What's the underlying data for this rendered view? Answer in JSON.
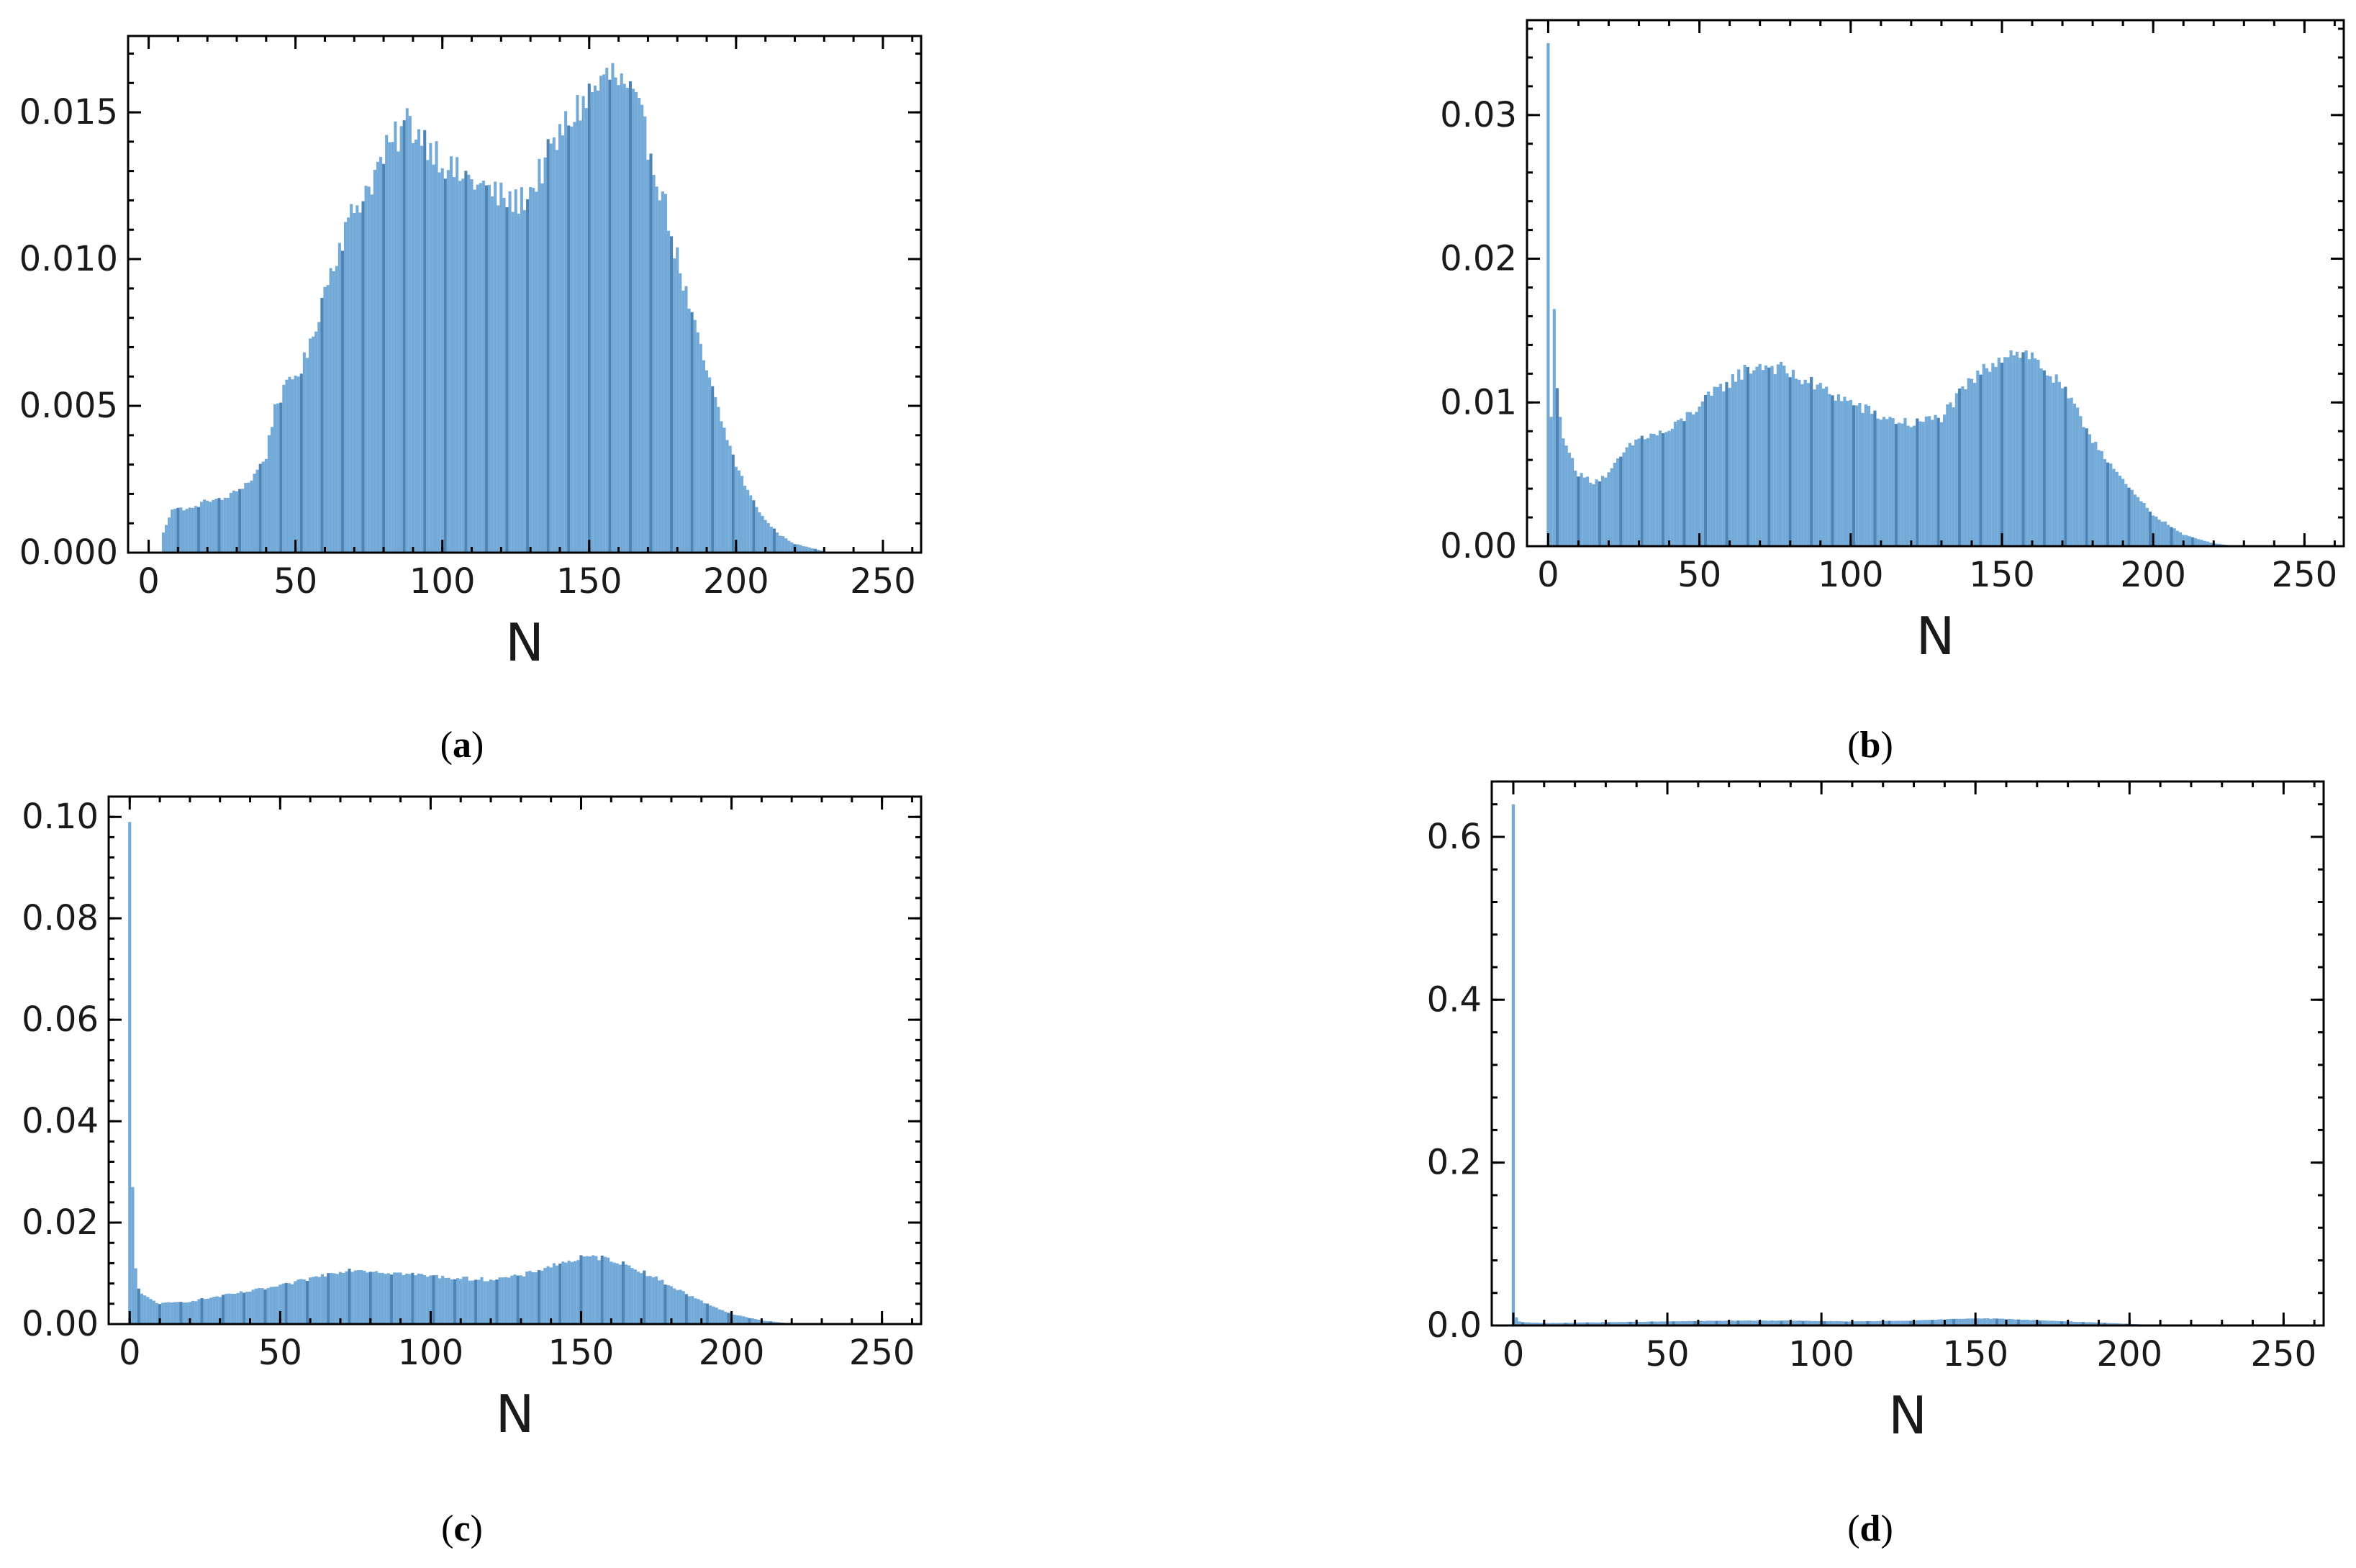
{
  "figure": {
    "bar_color": "#5b9bd0",
    "bar_edge_color": "#2f6fa8",
    "axis_color": "#000000"
  },
  "captions": [
    "a",
    "b",
    "c",
    "d"
  ],
  "chart_data": [
    {
      "id": "a",
      "type": "bar",
      "subtype": "histogram",
      "title": "",
      "xlabel": "N",
      "ylabel": "",
      "xlim": [
        -7,
        263
      ],
      "ylim": [
        0,
        0.0176
      ],
      "xticks": [
        0,
        50,
        100,
        150,
        200,
        250
      ],
      "yticks": [
        0.0,
        0.005,
        0.01,
        0.015
      ],
      "ytick_labels": [
        "0.000",
        "0.005",
        "0.010",
        "0.015"
      ],
      "bin_centers_start": 0,
      "bin_width": 1,
      "anchors": [
        [
          0,
          0
        ],
        [
          4,
          0
        ],
        [
          5,
          0.0007
        ],
        [
          8,
          0.0015
        ],
        [
          15,
          0.0015
        ],
        [
          20,
          0.0018
        ],
        [
          25,
          0.0018
        ],
        [
          30,
          0.0021
        ],
        [
          35,
          0.0025
        ],
        [
          40,
          0.0033
        ],
        [
          43,
          0.005
        ],
        [
          48,
          0.0058
        ],
        [
          52,
          0.0063
        ],
        [
          55,
          0.007
        ],
        [
          60,
          0.009
        ],
        [
          65,
          0.0105
        ],
        [
          70,
          0.0117
        ],
        [
          75,
          0.0125
        ],
        [
          80,
          0.0135
        ],
        [
          85,
          0.0142
        ],
        [
          88,
          0.0147
        ],
        [
          92,
          0.0143
        ],
        [
          97,
          0.0138
        ],
        [
          103,
          0.013
        ],
        [
          110,
          0.0127
        ],
        [
          118,
          0.0122
        ],
        [
          125,
          0.0119
        ],
        [
          130,
          0.0123
        ],
        [
          135,
          0.0133
        ],
        [
          140,
          0.0142
        ],
        [
          145,
          0.015
        ],
        [
          150,
          0.0156
        ],
        [
          155,
          0.0161
        ],
        [
          158,
          0.0163
        ],
        [
          162,
          0.0158
        ],
        [
          166,
          0.0152
        ],
        [
          170,
          0.014
        ],
        [
          175,
          0.0122
        ],
        [
          180,
          0.01
        ],
        [
          185,
          0.008
        ],
        [
          190,
          0.0062
        ],
        [
          195,
          0.0045
        ],
        [
          200,
          0.003
        ],
        [
          205,
          0.0019
        ],
        [
          210,
          0.0011
        ],
        [
          215,
          0.0006
        ],
        [
          220,
          0.0003
        ],
        [
          228,
          0.0001
        ],
        [
          232,
          0
        ]
      ]
    },
    {
      "id": "b",
      "type": "bar",
      "subtype": "histogram",
      "title": "",
      "xlabel": "N",
      "ylabel": "",
      "xlim": [
        -7,
        263
      ],
      "ylim": [
        0,
        0.0366
      ],
      "xticks": [
        0,
        50,
        100,
        150,
        200,
        250
      ],
      "yticks": [
        0.0,
        0.01,
        0.02,
        0.03
      ],
      "ytick_labels": [
        "0.00",
        "0.01",
        "0.02",
        "0.03"
      ],
      "bin_centers_start": 0,
      "bin_width": 1,
      "spikes": [
        [
          0,
          0.035
        ],
        [
          1,
          0.009
        ],
        [
          2,
          0.0165
        ],
        [
          3,
          0.011
        ],
        [
          4,
          0.009
        ],
        [
          5,
          0.0075
        ],
        [
          6,
          0.007
        ],
        [
          7,
          0.0065
        ]
      ],
      "anchors": [
        [
          8,
          0.006
        ],
        [
          10,
          0.005
        ],
        [
          15,
          0.0045
        ],
        [
          20,
          0.005
        ],
        [
          25,
          0.0065
        ],
        [
          30,
          0.0075
        ],
        [
          40,
          0.008
        ],
        [
          50,
          0.0098
        ],
        [
          60,
          0.0115
        ],
        [
          65,
          0.0122
        ],
        [
          70,
          0.0126
        ],
        [
          75,
          0.0125
        ],
        [
          80,
          0.012
        ],
        [
          90,
          0.011
        ],
        [
          100,
          0.01
        ],
        [
          110,
          0.009
        ],
        [
          120,
          0.0085
        ],
        [
          130,
          0.009
        ],
        [
          140,
          0.0115
        ],
        [
          150,
          0.0133
        ],
        [
          155,
          0.0136
        ],
        [
          160,
          0.0132
        ],
        [
          170,
          0.011
        ],
        [
          180,
          0.0075
        ],
        [
          190,
          0.0045
        ],
        [
          200,
          0.0022
        ],
        [
          210,
          0.0008
        ],
        [
          220,
          0.0002
        ],
        [
          228,
          0
        ]
      ]
    },
    {
      "id": "c",
      "type": "bar",
      "subtype": "histogram",
      "title": "",
      "xlabel": "N",
      "ylabel": "",
      "xlim": [
        -7,
        263
      ],
      "ylim": [
        0,
        0.104
      ],
      "xticks": [
        0,
        50,
        100,
        150,
        200,
        250
      ],
      "yticks": [
        0.0,
        0.02,
        0.04,
        0.06,
        0.08,
        0.1
      ],
      "ytick_labels": [
        "0.00",
        "0.02",
        "0.04",
        "0.06",
        "0.08",
        "0.10"
      ],
      "bin_centers_start": 0,
      "bin_width": 1,
      "spikes": [
        [
          0,
          0.099
        ],
        [
          1,
          0.027
        ],
        [
          2,
          0.011
        ],
        [
          3,
          0.007
        ],
        [
          4,
          0.006
        ]
      ],
      "anchors": [
        [
          5,
          0.0055
        ],
        [
          10,
          0.004
        ],
        [
          20,
          0.0045
        ],
        [
          30,
          0.0055
        ],
        [
          40,
          0.0065
        ],
        [
          50,
          0.0075
        ],
        [
          60,
          0.009
        ],
        [
          70,
          0.0105
        ],
        [
          75,
          0.0108
        ],
        [
          80,
          0.0105
        ],
        [
          90,
          0.01
        ],
        [
          100,
          0.0095
        ],
        [
          110,
          0.009
        ],
        [
          120,
          0.0088
        ],
        [
          130,
          0.0095
        ],
        [
          140,
          0.0115
        ],
        [
          150,
          0.013
        ],
        [
          155,
          0.0132
        ],
        [
          160,
          0.0128
        ],
        [
          170,
          0.0105
        ],
        [
          180,
          0.0075
        ],
        [
          190,
          0.0045
        ],
        [
          200,
          0.002
        ],
        [
          210,
          0.0007
        ],
        [
          220,
          0.0001
        ],
        [
          226,
          0
        ]
      ]
    },
    {
      "id": "d",
      "type": "bar",
      "subtype": "histogram",
      "title": "",
      "xlabel": "N",
      "ylabel": "",
      "xlim": [
        -7,
        263
      ],
      "ylim": [
        0,
        0.668
      ],
      "xticks": [
        0,
        50,
        100,
        150,
        200,
        250
      ],
      "yticks": [
        0.0,
        0.2,
        0.4,
        0.6
      ],
      "ytick_labels": [
        "0.0",
        "0.2",
        "0.4",
        "0.6"
      ],
      "bin_centers_start": 0,
      "bin_width": 1,
      "spikes": [
        [
          0,
          0.64
        ],
        [
          1,
          0.01
        ],
        [
          2,
          0.005
        ]
      ],
      "anchors": [
        [
          3,
          0.004
        ],
        [
          10,
          0.003
        ],
        [
          30,
          0.004
        ],
        [
          50,
          0.005
        ],
        [
          70,
          0.006
        ],
        [
          90,
          0.006
        ],
        [
          110,
          0.005
        ],
        [
          130,
          0.006
        ],
        [
          150,
          0.009
        ],
        [
          160,
          0.008
        ],
        [
          180,
          0.005
        ],
        [
          200,
          0.002
        ],
        [
          210,
          0.0005
        ],
        [
          220,
          0
        ]
      ]
    }
  ]
}
